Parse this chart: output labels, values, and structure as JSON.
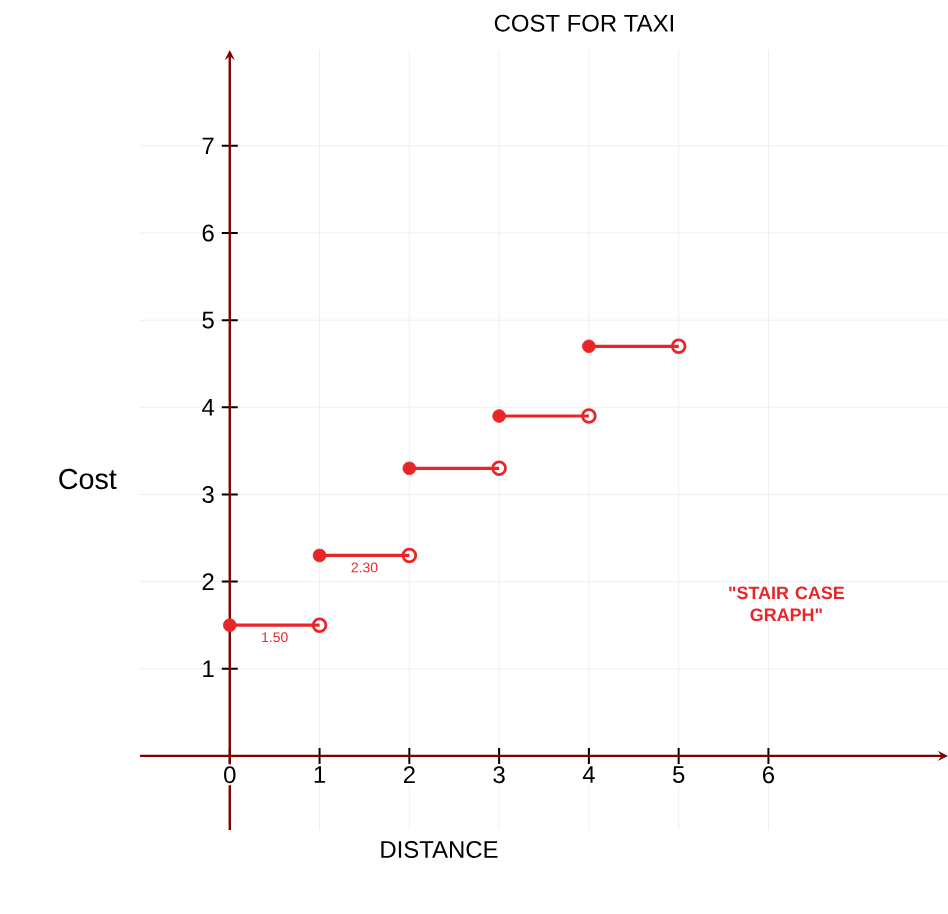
{
  "chart_data": {
    "type": "step",
    "title": "COST FOR TAXI",
    "xlabel": "DISTANCE",
    "ylabel": "Cost",
    "x": [
      0,
      1,
      2,
      3,
      4,
      5
    ],
    "series": [
      {
        "color": "#e8262a",
        "values": [
          1.5,
          2.3,
          3.3,
          3.9,
          4.7,
          4.7
        ],
        "marker": "none"
      },
      {
        "type": "scatter",
        "color": "#e8262a",
        "x": [
          0,
          1,
          2,
          3,
          4
        ],
        "values": [
          1.5,
          2.3,
          3.3,
          3.9,
          4.7
        ],
        "marker": "circle"
      },
      {
        "type": "scatter",
        "color": "#e8262a",
        "x": [
          1,
          2,
          3,
          4,
          5
        ],
        "values": [
          1.5,
          2.3,
          3.3,
          3.9,
          4.7
        ],
        "marker": "circle"
      }
    ],
    "annotations": [
      {
        "text": "1.50",
        "x": 0.5,
        "y": 1.5
      },
      {
        "text": "2.30",
        "x": 1.5,
        "y": 2.3
      },
      "\"STAIR CASE GRAPH\""
    ],
    "xlim": [
      -1,
      8
    ],
    "ylim": [
      -0.85,
      8.1
    ],
    "xticks": [
      0,
      1,
      2,
      3,
      4,
      5,
      6
    ],
    "yticks": [
      1,
      2,
      3,
      4,
      5,
      6,
      7
    ],
    "grid": true,
    "line_style": "solid"
  }
}
